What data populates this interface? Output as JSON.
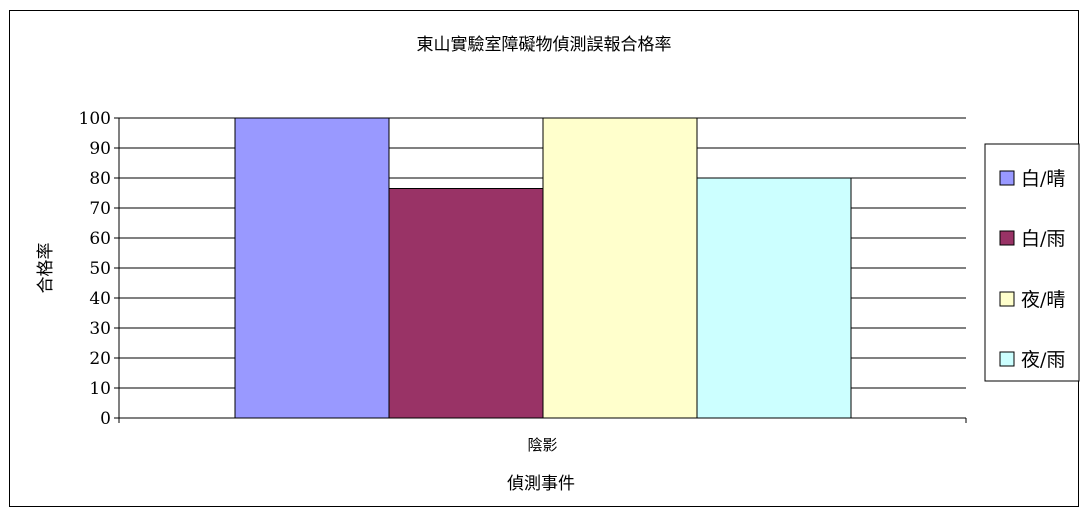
{
  "chart_data": {
    "type": "bar",
    "title": "東山實驗室障礙物偵測誤報合格率",
    "xlabel": "偵測事件",
    "ylabel": "合格率",
    "categories": [
      "陰影"
    ],
    "series": [
      {
        "name": "白/晴",
        "values": [
          100
        ],
        "color": "#9999FF"
      },
      {
        "name": "白/雨",
        "values": [
          76.5
        ],
        "color": "#993366"
      },
      {
        "name": "夜/晴",
        "values": [
          100
        ],
        "color": "#FFFFCC"
      },
      {
        "name": "夜/雨",
        "values": [
          80
        ],
        "color": "#CCFFFF"
      }
    ],
    "ylim": [
      0,
      100
    ],
    "yticks": [
      0,
      10,
      20,
      30,
      40,
      50,
      60,
      70,
      80,
      90,
      100
    ],
    "grid": true,
    "legend_position": "right"
  }
}
